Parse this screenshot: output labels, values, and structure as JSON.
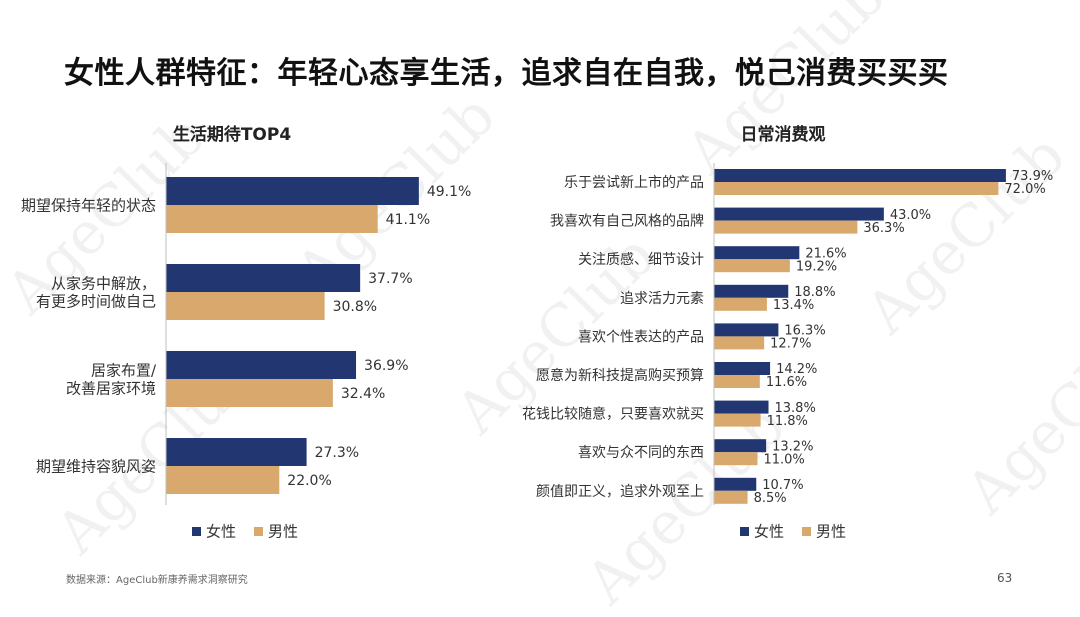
{
  "title": "女性人群特征：年轻心态享生活，追求自在自我，悦己消费买买买",
  "watermark": "AgeClub",
  "colors": {
    "female": "#223771",
    "male": "#D9A86C"
  },
  "chart_data": [
    {
      "type": "bar",
      "orientation": "horizontal",
      "title": "生活期待TOP4",
      "categories": [
        [
          "期望保持年轻的状态"
        ],
        [
          "从家务中解放，",
          "有更多时间做自己"
        ],
        [
          "居家布置/",
          "改善居家环境"
        ],
        [
          "期望维持容貌风姿"
        ]
      ],
      "series": [
        {
          "name": "女性",
          "values": [
            49.1,
            37.7,
            36.9,
            27.3
          ],
          "labels": [
            "49.1%",
            "37.7%",
            "36.9%",
            "27.3%"
          ]
        },
        {
          "name": "男性",
          "values": [
            41.1,
            30.8,
            32.4,
            22.0
          ],
          "labels": [
            "41.1%",
            "30.8%",
            "32.4%",
            "22.0%"
          ]
        }
      ],
      "legend": "bottom"
    },
    {
      "type": "bar",
      "orientation": "horizontal",
      "title": "日常消费观",
      "categories": [
        [
          "乐于尝试新上市的产品"
        ],
        [
          "我喜欢有自己风格的品牌"
        ],
        [
          "关注质感、细节设计"
        ],
        [
          "追求活力元素"
        ],
        [
          "喜欢个性表达的产品"
        ],
        [
          "愿意为新科技提高购买预算"
        ],
        [
          "花钱比较随意，只要喜欢就买"
        ],
        [
          "喜欢与众不同的东西"
        ],
        [
          "颜值即正义，追求外观至上"
        ]
      ],
      "series": [
        {
          "name": "女性",
          "values": [
            73.9,
            43.0,
            21.6,
            18.8,
            16.3,
            14.2,
            13.8,
            13.2,
            10.7
          ],
          "labels": [
            "73.9%",
            "43.0%",
            "21.6%",
            "18.8%",
            "16.3%",
            "14.2%",
            "13.8%",
            "13.2%",
            "10.7%"
          ]
        },
        {
          "name": "男性",
          "values": [
            72.0,
            36.3,
            19.2,
            13.4,
            12.7,
            11.6,
            11.8,
            11.0,
            8.5
          ],
          "labels": [
            "72.0%",
            "36.3%",
            "19.2%",
            "13.4%",
            "12.7%",
            "11.6%",
            "11.8%",
            "11.0%",
            "8.5%"
          ]
        }
      ],
      "legend": "bottom"
    }
  ],
  "footer": {
    "source": "数据来源：AgeClub新康养需求洞察研究",
    "page": "63"
  }
}
